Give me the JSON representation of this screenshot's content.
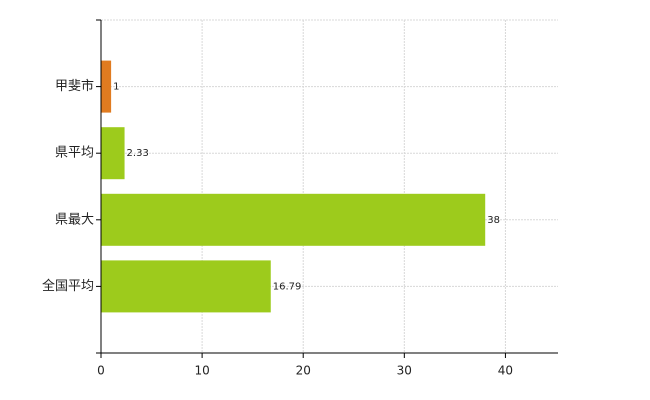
{
  "chart_data": {
    "type": "barh",
    "categories": [
      "甲斐市",
      "県平均",
      "県最大",
      "全国平均"
    ],
    "values": [
      1,
      2.33,
      38,
      16.79
    ],
    "colors": [
      "#e07b20",
      "#9dcb1c",
      "#9dcb1c",
      "#9dcb1c"
    ],
    "xlim": [
      0,
      45.2
    ],
    "xticks": [
      0,
      10,
      20,
      30,
      40
    ],
    "grid": true
  }
}
